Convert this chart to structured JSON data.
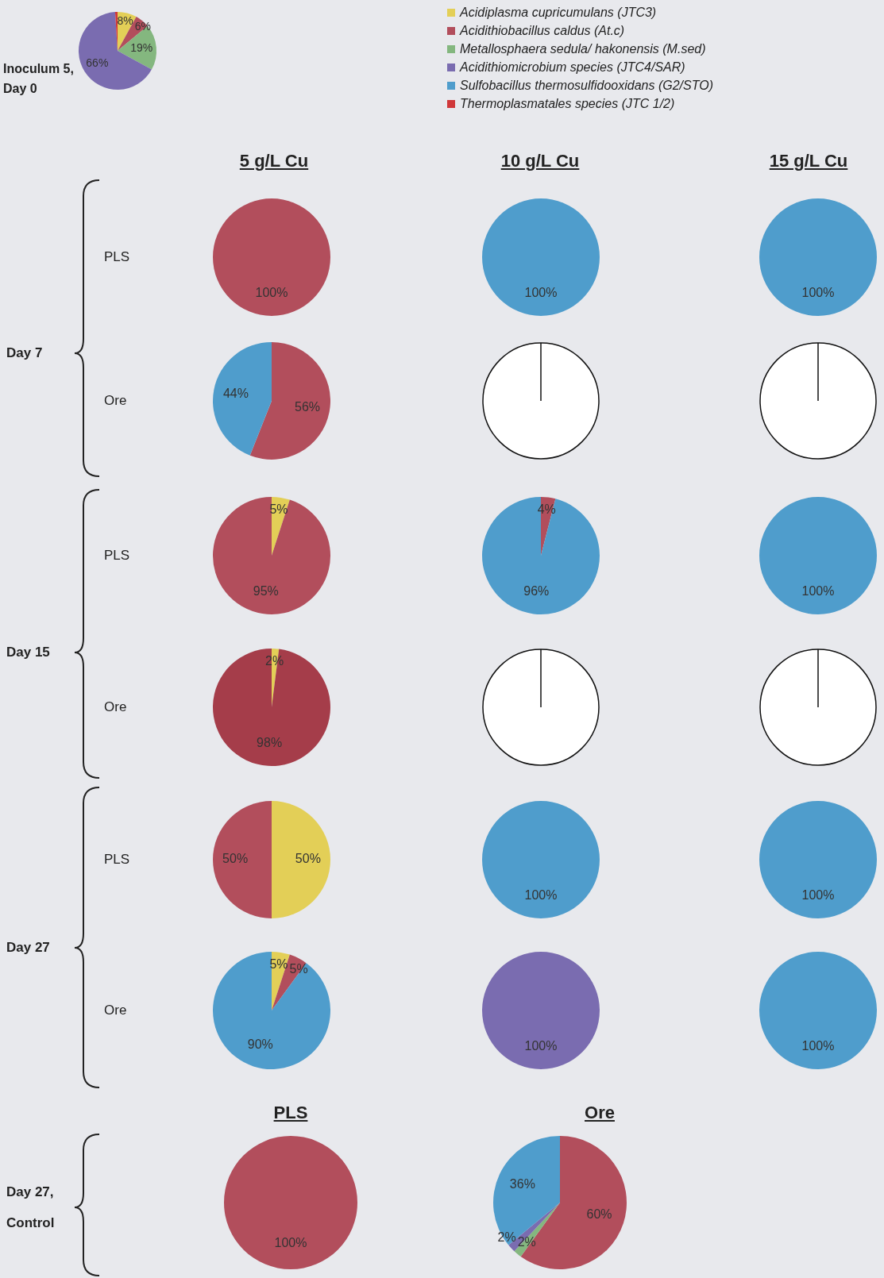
{
  "chart_data": [
    {
      "type": "other",
      "title": "Inoculum 5, Day 0"
    },
    {
      "type": "pie",
      "categories": [
        "Acidiplasma cupricumulans (JTC3)",
        "Acidithiobacillus caldus (At.c)",
        "Metallosphaera sedula/ hakonensis (M.sed)",
        "Acidithiomicrobium species (JTC4/SAR)",
        "Sulfobacillus thermosulfidooxidans (G2/STO)",
        "Thermoplasmatales species (JTC 1/2)"
      ],
      "values": [
        8,
        6,
        19,
        66,
        0,
        1
      ],
      "colors": [
        "#e3cf57",
        "#b24e5c",
        "#84b77f",
        "#7a6cb0",
        "#4f9dcc",
        "#d0383a"
      ],
      "value_labels": [
        "8%",
        "6%",
        "19%",
        "66%",
        null,
        null
      ],
      "legend": "right"
    },
    {
      "type": "other",
      "title": "5 g/L Cu"
    },
    {
      "type": "other",
      "title": "10 g/L Cu"
    },
    {
      "type": "other",
      "title": "15 g/L Cu"
    },
    {
      "type": "other",
      "title": "Day 7"
    },
    {
      "type": "other",
      "title": "PLS"
    },
    {
      "type": "pie",
      "categories": [
        null
      ],
      "values": [
        100
      ],
      "colors": [
        "#b24e5c"
      ],
      "value_labels": [
        "100%"
      ]
    },
    {
      "type": "pie",
      "categories": [
        null
      ],
      "values": [
        100
      ],
      "colors": [
        "#4f9dcc"
      ],
      "value_labels": [
        "100%"
      ]
    },
    {
      "type": "pie",
      "categories": [
        null
      ],
      "values": [
        100
      ],
      "colors": [
        "#4f9dcc"
      ],
      "value_labels": [
        "100%"
      ]
    },
    {
      "type": "other",
      "title": "Ore"
    },
    {
      "type": "pie",
      "categories": [
        null,
        null
      ],
      "values": [
        56,
        44
      ],
      "colors": [
        "#b24e5c",
        "#4f9dcc"
      ],
      "value_labels": [
        "56%",
        "44%"
      ]
    },
    {
      "type": "other"
    },
    {
      "type": "other"
    },
    {
      "type": "other",
      "title": "Day 15"
    },
    {
      "type": "other",
      "title": "PLS"
    },
    {
      "type": "pie",
      "categories": [
        null,
        null
      ],
      "values": [
        5,
        95
      ],
      "colors": [
        "#e3cf57",
        "#b24e5c"
      ],
      "value_labels": [
        "5%",
        "95%"
      ]
    },
    {
      "type": "pie",
      "categories": [
        null,
        null
      ],
      "values": [
        4,
        96
      ],
      "colors": [
        "#b24e5c",
        "#4f9dcc"
      ],
      "value_labels": [
        "4%",
        "96%"
      ]
    },
    {
      "type": "pie",
      "categories": [
        null
      ],
      "values": [
        100
      ],
      "colors": [
        "#4f9dcc"
      ],
      "value_labels": [
        "100%"
      ]
    },
    {
      "type": "other",
      "title": "Ore"
    },
    {
      "type": "pie",
      "categories": [
        null,
        null
      ],
      "values": [
        2,
        98
      ],
      "colors": [
        "#e3cf57",
        "#a53d4a"
      ],
      "value_labels": [
        "2%",
        "98%"
      ]
    },
    {
      "type": "other"
    },
    {
      "type": "other"
    },
    {
      "type": "other",
      "title": "Day 27"
    },
    {
      "type": "other",
      "title": "PLS"
    },
    {
      "type": "pie",
      "categories": [
        null,
        null
      ],
      "values": [
        50,
        50
      ],
      "colors": [
        "#e3cf57",
        "#b24e5c"
      ],
      "value_labels": [
        "50%",
        "50%"
      ]
    },
    {
      "type": "pie",
      "categories": [
        null
      ],
      "values": [
        100
      ],
      "colors": [
        "#4f9dcc"
      ],
      "value_labels": [
        "100%"
      ]
    },
    {
      "type": "pie",
      "categories": [
        null
      ],
      "values": [
        100
      ],
      "colors": [
        "#4f9dcc"
      ],
      "value_labels": [
        "100%"
      ]
    },
    {
      "type": "other",
      "title": "Ore"
    },
    {
      "type": "pie",
      "categories": [
        null,
        null,
        null
      ],
      "values": [
        5,
        5,
        90
      ],
      "colors": [
        "#e3cf57",
        "#b24e5c",
        "#4f9dcc"
      ],
      "value_labels": [
        "5%",
        "5%",
        "90%"
      ]
    },
    {
      "type": "pie",
      "categories": [
        null
      ],
      "values": [
        100
      ],
      "colors": [
        "#7a6cb0"
      ],
      "value_labels": [
        "100%"
      ]
    },
    {
      "type": "pie",
      "categories": [
        null
      ],
      "values": [
        100
      ],
      "colors": [
        "#4f9dcc"
      ],
      "value_labels": [
        "100%"
      ]
    },
    {
      "type": "other",
      "title": "PLS"
    },
    {
      "type": "other",
      "title": "Ore"
    },
    {
      "type": "other",
      "title": "Day 27, Control"
    },
    {
      "type": "pie",
      "categories": [
        null
      ],
      "values": [
        100
      ],
      "colors": [
        "#b24e5c"
      ],
      "value_labels": [
        "100%"
      ]
    },
    {
      "type": "pie",
      "categories": [
        null,
        null,
        null,
        null
      ],
      "values": [
        60,
        2,
        2,
        36
      ],
      "colors": [
        "#b24e5c",
        "#84b77f",
        "#7a6cb0",
        "#4f9dcc"
      ],
      "value_labels": [
        "60%",
        "2%",
        "2%",
        "36%"
      ]
    }
  ]
}
